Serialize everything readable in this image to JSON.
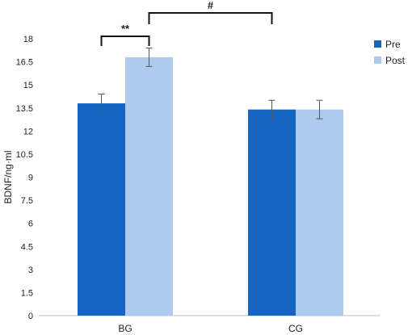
{
  "chart_data": {
    "type": "bar",
    "xlabel": "",
    "ylabel": "BDNF/ng·ml",
    "categories": [
      "BG",
      "CG"
    ],
    "yticks": [
      "0",
      "1.5",
      "3",
      "4.5",
      "6",
      "7.5",
      "9",
      "10.5",
      "12",
      "13.5",
      "15",
      "16.5",
      "18"
    ],
    "ylim": [
      0,
      18
    ],
    "grid": false,
    "legend_position": "top-right",
    "series": [
      {
        "name": "Pre",
        "color": "#1565c0",
        "values": [
          13.8,
          13.4
        ],
        "errors": [
          0.6,
          0.6
        ]
      },
      {
        "name": "Post",
        "color": "#aecbee",
        "values": [
          16.8,
          13.4
        ],
        "errors": [
          0.6,
          0.6
        ]
      }
    ],
    "annotations": [
      {
        "label": "**",
        "from": "BG Pre",
        "to": "BG Post"
      },
      {
        "label": "#",
        "from": "BG Post",
        "to": "CG Pre"
      }
    ]
  }
}
